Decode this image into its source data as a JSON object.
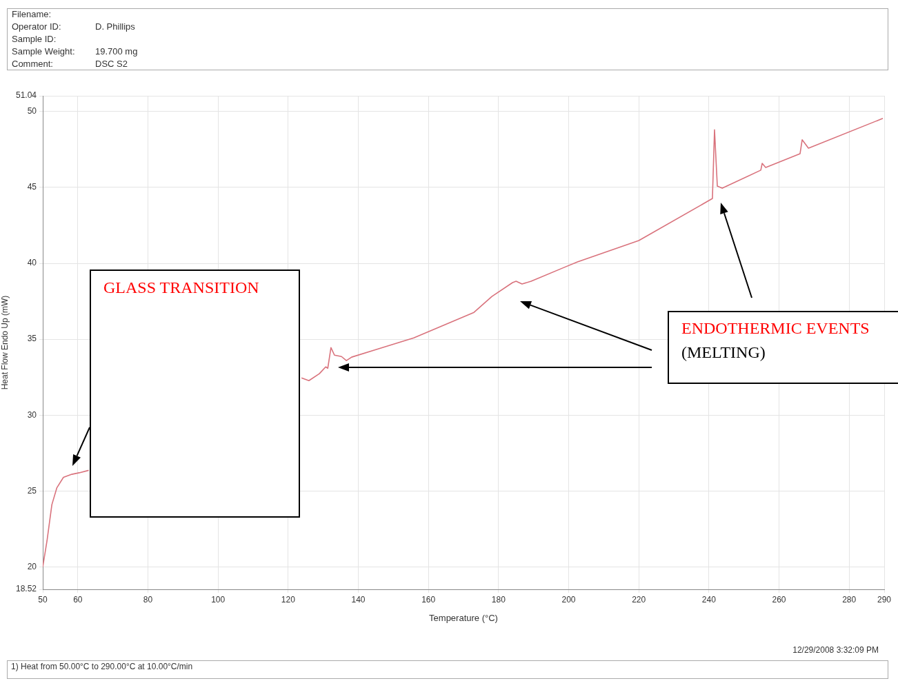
{
  "chart_data": {
    "type": "line",
    "xlabel": "Temperature (°C)",
    "ylabel": "Heat Flow Endo Up (mW)",
    "xlim": [
      50,
      290
    ],
    "xticks": [
      50,
      60,
      80,
      100,
      120,
      140,
      160,
      180,
      200,
      220,
      240,
      260,
      280,
      290
    ],
    "ylim": [
      18.52,
      51.04
    ],
    "yticks": [
      18.52,
      20,
      25,
      30,
      35,
      40,
      45,
      50,
      51.04
    ],
    "grid": true,
    "legend": false,
    "series": [
      {
        "color": "#d9727c",
        "x": [
          50,
          51.2,
          52.6,
          54,
          55.9,
          58.3,
          60.4,
          63.1,
          70,
          80,
          90,
          100,
          110,
          120,
          123.8,
          125.9,
          128.9,
          130.7,
          131.3,
          132.2,
          133.2,
          135.2,
          136.6,
          138.1,
          155.8,
          173,
          178.1,
          184,
          185,
          186.7,
          189.3,
          199.1,
          202.5,
          220,
          241,
          241.6,
          242.4,
          243.8,
          254.8,
          255.2,
          256.2,
          266,
          266.6,
          268.4,
          289.6
        ],
        "values": [
          20,
          21.7,
          24.1,
          25.2,
          25.9,
          26.1,
          26.2,
          26.36,
          null,
          null,
          null,
          null,
          null,
          null,
          32.45,
          32.27,
          32.73,
          33.18,
          33.09,
          34.45,
          33.95,
          33.86,
          33.59,
          33.82,
          35.09,
          36.77,
          37.82,
          38.73,
          38.82,
          38.64,
          38.82,
          39.77,
          40.09,
          41.5,
          44.27,
          48.8,
          45.09,
          44.95,
          46.14,
          46.59,
          46.32,
          47.23,
          48.14,
          47.59,
          49.55
        ]
      }
    ],
    "annotations": [
      "Filename:",
      "Operator ID:",
      "D. Phillips",
      "Sample ID:",
      "Sample Weight:",
      "19.700 mg",
      "Comment:",
      "DSC S2",
      "GLASS TRANSITION",
      "ENDOTHERMIC EVENTS",
      "(MELTING)",
      "12/29/2008 3:32:09 PM",
      "1)  Heat from 50.00°C to 290.00°C at 10.00°C/min"
    ]
  }
}
